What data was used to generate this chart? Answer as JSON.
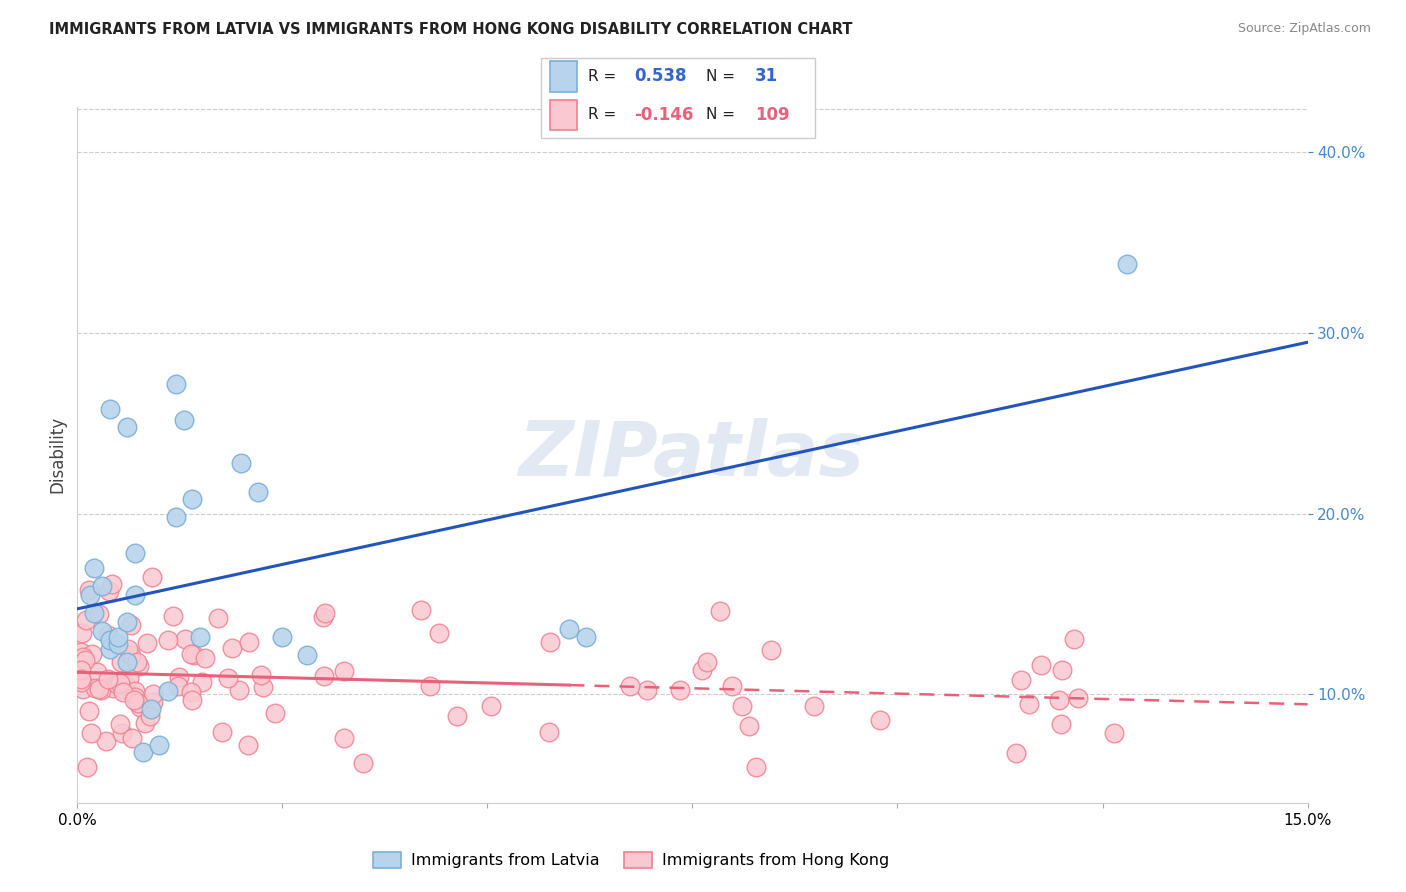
{
  "title": "IMMIGRANTS FROM LATVIA VS IMMIGRANTS FROM HONG KONG DISABILITY CORRELATION CHART",
  "source": "Source: ZipAtlas.com",
  "ylabel": "Disability",
  "xlim": [
    0.0,
    0.15
  ],
  "ylim": [
    0.04,
    0.425
  ],
  "y_ticks_right": [
    0.1,
    0.2,
    0.3,
    0.4
  ],
  "R_latvia": 0.538,
  "N_latvia": 31,
  "R_hk": -0.146,
  "N_hk": 109,
  "color_latvia_face": "#b8d4ec",
  "color_latvia_edge": "#7bafd4",
  "color_hk_face": "#f9c8d0",
  "color_hk_edge": "#f08090",
  "trendline_latvia_color": "#2255bb",
  "trendline_hk_color": "#e8607a",
  "watermark": "ZIPatlas",
  "legend_label_latvia": "Immigrants from Latvia",
  "legend_label_hk": "Immigrants from Hong Kong"
}
